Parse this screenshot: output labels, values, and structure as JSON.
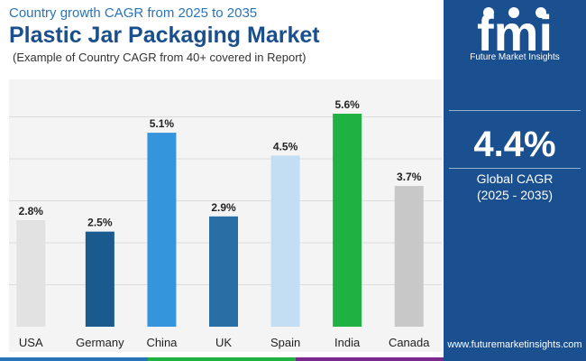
{
  "header": {
    "top_subtitle": "Country growth CAGR from 2025 to 2035",
    "title": "Plastic Jar Packaging Market",
    "caption": "(Example of Country CAGR from 40+ covered in Report)"
  },
  "chart_data": {
    "type": "bar",
    "title": "Plastic Jar Packaging Market",
    "subtitle": "Country growth CAGR from 2025 to 2035",
    "categories": [
      "USA",
      "Germany",
      "China",
      "UK",
      "Spain",
      "India",
      "Canada"
    ],
    "values": [
      2.8,
      2.5,
      5.1,
      2.9,
      4.5,
      5.6,
      3.7
    ],
    "labels": [
      "2.8%",
      "2.5%",
      "5.1%",
      "2.9%",
      "4.5%",
      "5.6%",
      "3.7%"
    ],
    "colors": [
      "#e2e2e2",
      "#1a5a8e",
      "#3495dc",
      "#2a6ea6",
      "#c3def3",
      "#1fb243",
      "#c8c8c8"
    ],
    "ylim": [
      0,
      6.0
    ],
    "xlabel": "",
    "ylabel": "",
    "grid": "horizontal"
  },
  "side_panel": {
    "logo_text": "fmi",
    "logo_subtitle": "Future Market Insights",
    "global_value": "4.4%",
    "global_label": "Global CAGR",
    "global_period": "(2025 - 2035)",
    "website": "www.futuremarketinsights.com",
    "background_color": "#1b5090"
  },
  "bottom_bar_colors": [
    "#2a74b8",
    "#1fb243",
    "#7a2a8c"
  ]
}
